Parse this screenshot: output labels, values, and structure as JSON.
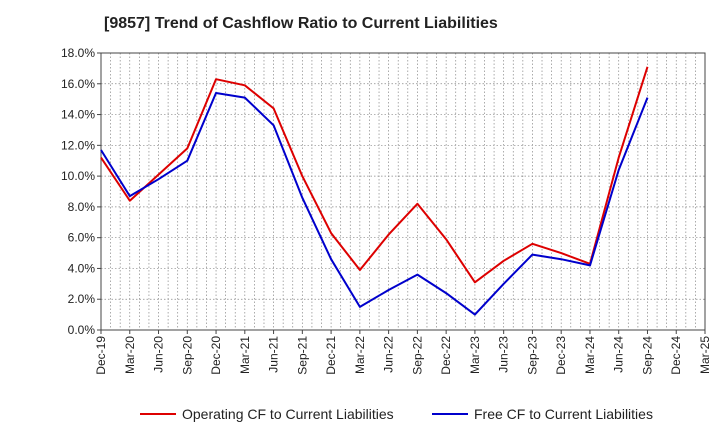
{
  "chart_data": {
    "type": "line",
    "title": "[9857]  Trend of Cashflow Ratio to Current Liabilities",
    "xlabel": "",
    "ylabel": "",
    "categories": [
      "Dec-19",
      "Mar-20",
      "Jun-20",
      "Sep-20",
      "Dec-20",
      "Mar-21",
      "Jun-21",
      "Sep-21",
      "Dec-21",
      "Mar-22",
      "Jun-22",
      "Sep-22",
      "Dec-22",
      "Mar-23",
      "Jun-23",
      "Sep-23",
      "Dec-23",
      "Mar-24",
      "Jun-24",
      "Sep-24",
      "Dec-24",
      "Mar-25"
    ],
    "y_ticks": [
      "0.0%",
      "2.0%",
      "4.0%",
      "6.0%",
      "8.0%",
      "10.0%",
      "12.0%",
      "14.0%",
      "16.0%",
      "18.0%"
    ],
    "ylim": [
      0,
      18
    ],
    "grid": true,
    "legend_position": "bottom",
    "series": [
      {
        "name": "Operating CF to Current Liabilities",
        "color": "#dd0000",
        "values": [
          11.2,
          8.4,
          10.1,
          11.8,
          16.3,
          15.9,
          14.4,
          10.0,
          6.3,
          3.9,
          6.2,
          8.2,
          5.9,
          3.1,
          4.5,
          5.6,
          5.0,
          4.3,
          11.2,
          17.1,
          null,
          null
        ]
      },
      {
        "name": "Free CF to Current Liabilities",
        "color": "#0000cc",
        "values": [
          11.7,
          8.7,
          9.8,
          11.0,
          15.4,
          15.1,
          13.3,
          8.6,
          4.6,
          1.5,
          2.6,
          3.6,
          2.4,
          1.0,
          3.0,
          4.9,
          4.6,
          4.2,
          10.4,
          15.1,
          null,
          null
        ]
      }
    ]
  }
}
